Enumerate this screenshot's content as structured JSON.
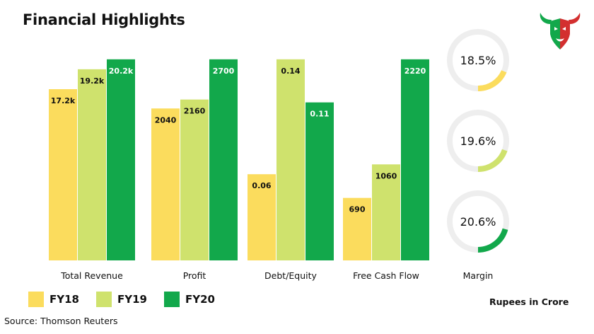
{
  "title": "Financial Highlights",
  "logo": {
    "icon": "bull-head-logo-icon"
  },
  "colors": {
    "FY18": "#fbdc5d",
    "FY19": "#cfe26d",
    "FY20": "#12a84b",
    "ring": "#eeeeee"
  },
  "chart_data": {
    "type": "bar",
    "groups": [
      {
        "category": "Total Revenue",
        "values": [
          17200,
          19200,
          20200
        ],
        "labels": [
          "17.2k",
          "19.2k",
          "20.2k"
        ]
      },
      {
        "category": "Profit",
        "values": [
          2040,
          2160,
          2700
        ],
        "labels": [
          "2040",
          "2160",
          "2700"
        ]
      },
      {
        "category": "Debt/Equity",
        "values": [
          0.06,
          0.14,
          0.11
        ],
        "labels": [
          "0.06",
          "0.14",
          "0.11"
        ]
      },
      {
        "category": "Free Cash Flow",
        "values": [
          690,
          1060,
          2220
        ],
        "labels": [
          "690",
          "1060",
          "2220"
        ]
      }
    ],
    "series": [
      {
        "name": "FY18"
      },
      {
        "name": "FY19"
      },
      {
        "name": "FY20"
      }
    ],
    "legend_position": "bottom-left",
    "grid": false
  },
  "margin": {
    "label": "Margin",
    "type": "donut",
    "items": [
      {
        "series": "FY18",
        "value": 18.5,
        "label": "18.5%"
      },
      {
        "series": "FY19",
        "value": 19.6,
        "label": "19.6%"
      },
      {
        "series": "FY20",
        "value": 20.6,
        "label": "20.6%"
      }
    ]
  },
  "unit_note": "Rupees in Crore",
  "source": "Source: Thomson Reuters"
}
